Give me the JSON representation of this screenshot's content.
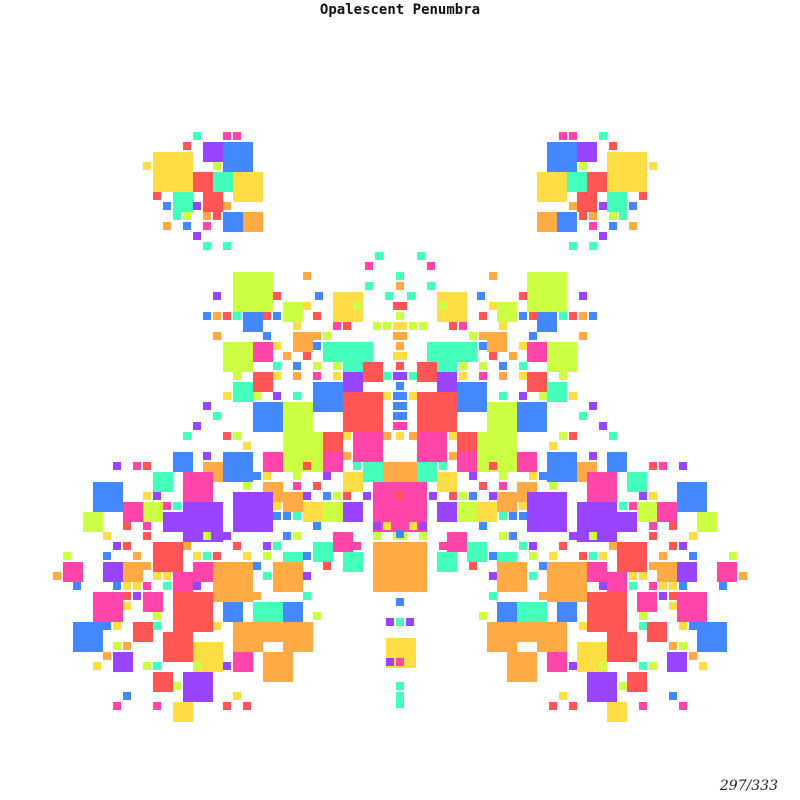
{
  "title": "Opalescent Penumbra",
  "counter": {
    "current": "297",
    "total": "333"
  },
  "palette": {
    "yellow": "#ffdd44",
    "orange": "#ffaa44",
    "red": "#ff5555",
    "pink": "#ff44aa",
    "purple": "#9944ff",
    "blue": "#4488ff",
    "mint": "#44ffbb",
    "lime": "#ccff44"
  },
  "symmetry": "mirrored left-right"
}
